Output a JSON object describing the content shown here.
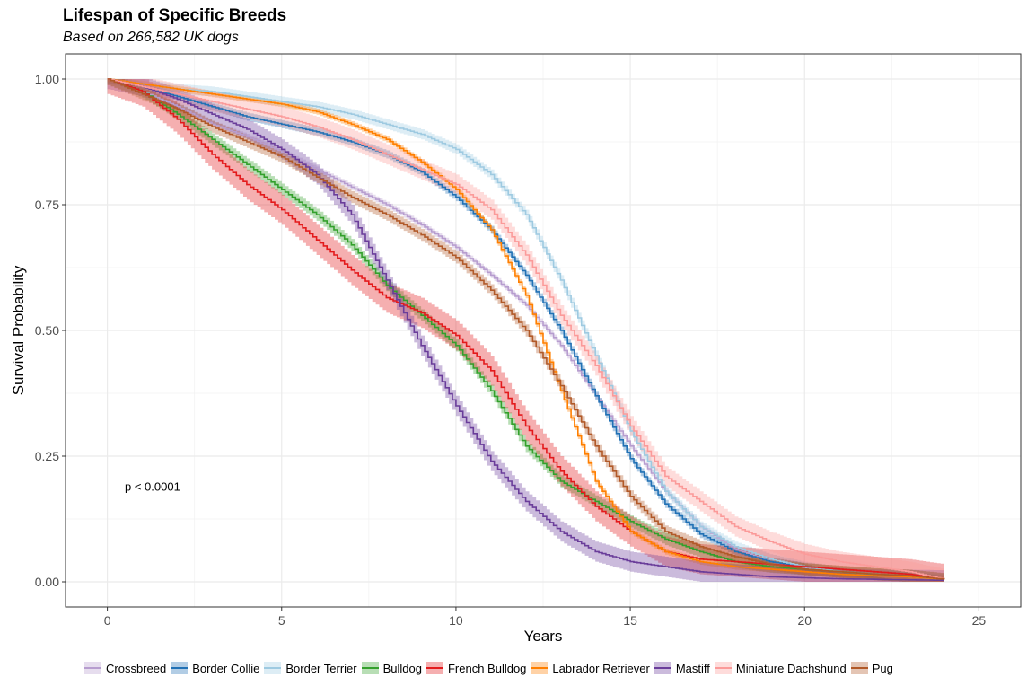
{
  "chart_data": {
    "type": "line",
    "title": "Lifespan of Specific Breeds",
    "subtitle": "Based on 266,582 UK dogs",
    "xlabel": "Years",
    "ylabel": "Survival Probability",
    "xlim": [
      -1.2,
      26.2
    ],
    "ylim": [
      -0.05,
      1.05
    ],
    "xticks": [
      0,
      5,
      10,
      15,
      20,
      25
    ],
    "yticks": [
      0.0,
      0.25,
      0.5,
      0.75,
      1.0
    ],
    "xtick_labels": [
      "0",
      "5",
      "10",
      "15",
      "20",
      "25"
    ],
    "ytick_labels": [
      "0.00",
      "0.25",
      "0.50",
      "0.75",
      "1.00"
    ],
    "grid": true,
    "legend": "bottom",
    "annotation": "p < 0.0001",
    "annotation_position": {
      "x": 0.5,
      "y": 0.19
    },
    "series": [
      {
        "name": "Crossbreed",
        "color": "#b79dcf",
        "band": 0.006,
        "x": [
          0,
          1,
          2,
          3,
          4,
          5,
          6,
          7,
          8,
          9,
          10,
          11,
          12,
          13,
          14,
          15,
          16,
          17,
          18,
          19,
          20,
          21,
          22,
          23,
          24
        ],
        "y": [
          1.0,
          0.975,
          0.945,
          0.91,
          0.885,
          0.855,
          0.82,
          0.785,
          0.75,
          0.71,
          0.665,
          0.61,
          0.55,
          0.47,
          0.37,
          0.27,
          0.18,
          0.11,
          0.065,
          0.04,
          0.028,
          0.02,
          0.015,
          0.012,
          0.005
        ]
      },
      {
        "name": "Border Collie",
        "color": "#2171b5",
        "band": 0.008,
        "x": [
          0,
          1,
          2,
          3,
          4,
          5,
          6,
          7,
          8,
          9,
          10,
          11,
          12,
          13,
          14,
          15,
          16,
          17,
          18,
          19,
          20,
          21,
          22,
          23,
          24
        ],
        "y": [
          1.0,
          0.985,
          0.965,
          0.945,
          0.925,
          0.91,
          0.895,
          0.875,
          0.85,
          0.815,
          0.765,
          0.7,
          0.61,
          0.5,
          0.37,
          0.245,
          0.155,
          0.095,
          0.06,
          0.04,
          0.03,
          0.02,
          0.015,
          0.01,
          0.005
        ]
      },
      {
        "name": "Border Terrier",
        "color": "#9ecae1",
        "band": 0.01,
        "x": [
          0,
          1,
          2,
          3,
          4,
          5,
          6,
          7,
          8,
          9,
          10,
          11,
          12,
          13,
          14,
          15,
          16,
          17,
          18,
          19,
          20,
          21,
          22,
          23,
          24
        ],
        "y": [
          1.0,
          0.99,
          0.98,
          0.975,
          0.965,
          0.955,
          0.945,
          0.93,
          0.91,
          0.89,
          0.86,
          0.81,
          0.73,
          0.6,
          0.45,
          0.3,
          0.18,
          0.11,
          0.07,
          0.045,
          0.03,
          0.02,
          0.015,
          0.01,
          0.005
        ]
      },
      {
        "name": "Bulldog",
        "color": "#33a02c",
        "band": 0.012,
        "x": [
          0,
          1,
          2,
          3,
          4,
          5,
          6,
          7,
          8,
          9,
          10,
          11,
          12,
          13,
          14,
          15,
          16,
          17,
          18,
          19,
          20,
          21,
          22,
          23,
          24
        ],
        "y": [
          1.0,
          0.975,
          0.93,
          0.88,
          0.83,
          0.78,
          0.73,
          0.67,
          0.59,
          0.53,
          0.47,
          0.38,
          0.27,
          0.2,
          0.16,
          0.12,
          0.085,
          0.06,
          0.04,
          0.03,
          0.025,
          0.02,
          0.015,
          0.012,
          0.005
        ]
      },
      {
        "name": "French Bulldog",
        "color": "#e31a1c",
        "band": 0.03,
        "x": [
          0,
          1,
          2,
          3,
          4,
          5,
          6,
          7,
          8,
          9,
          10,
          11,
          12,
          13,
          14,
          15,
          16,
          17,
          18,
          19,
          20,
          21,
          22,
          23,
          24
        ],
        "y": [
          1.0,
          0.975,
          0.92,
          0.85,
          0.79,
          0.74,
          0.68,
          0.62,
          0.565,
          0.535,
          0.49,
          0.42,
          0.31,
          0.22,
          0.15,
          0.1,
          0.06,
          0.045,
          0.04,
          0.035,
          0.03,
          0.025,
          0.02,
          0.015,
          0.005
        ]
      },
      {
        "name": "Labrador Retriever",
        "color": "#ff7f00",
        "band": 0.006,
        "x": [
          0,
          1,
          2,
          3,
          4,
          5,
          6,
          7,
          8,
          9,
          10,
          11,
          12,
          13,
          14,
          15,
          16,
          17,
          18,
          19,
          20,
          21,
          22,
          23,
          24
        ],
        "y": [
          1.0,
          0.99,
          0.98,
          0.97,
          0.96,
          0.95,
          0.935,
          0.91,
          0.88,
          0.835,
          0.78,
          0.7,
          0.57,
          0.38,
          0.2,
          0.1,
          0.06,
          0.04,
          0.03,
          0.025,
          0.02,
          0.015,
          0.012,
          0.01,
          0.005
        ]
      },
      {
        "name": "Mastiff",
        "color": "#6a3d9a",
        "band": 0.02,
        "x": [
          0,
          1,
          2,
          3,
          4,
          5,
          6,
          7,
          8,
          9,
          10,
          11,
          12,
          13,
          14,
          15,
          16,
          17,
          18,
          19,
          20,
          21,
          22,
          23,
          24
        ],
        "y": [
          1.0,
          0.985,
          0.96,
          0.93,
          0.9,
          0.86,
          0.81,
          0.73,
          0.6,
          0.47,
          0.35,
          0.24,
          0.16,
          0.1,
          0.06,
          0.04,
          0.03,
          0.02,
          0.015,
          0.01,
          0.008,
          0.006,
          0.005,
          0.004,
          0.003
        ]
      },
      {
        "name": "Miniature Dachshund",
        "color": "#fb9a99",
        "band": 0.02,
        "x": [
          0,
          1,
          2,
          3,
          4,
          5,
          6,
          7,
          8,
          9,
          10,
          11,
          12,
          13,
          14,
          15,
          16,
          17,
          18,
          19,
          20,
          21,
          22,
          23,
          24
        ],
        "y": [
          1.0,
          0.985,
          0.97,
          0.955,
          0.94,
          0.925,
          0.905,
          0.88,
          0.85,
          0.82,
          0.79,
          0.74,
          0.65,
          0.53,
          0.43,
          0.31,
          0.21,
          0.16,
          0.11,
          0.08,
          0.055,
          0.04,
          0.03,
          0.02,
          0.005
        ]
      },
      {
        "name": "Pug",
        "color": "#b15928",
        "band": 0.012,
        "x": [
          0,
          1,
          2,
          3,
          4,
          5,
          6,
          7,
          8,
          9,
          10,
          11,
          12,
          13,
          14,
          15,
          16,
          17,
          18,
          19,
          20,
          21,
          22,
          23,
          24
        ],
        "y": [
          1.0,
          0.97,
          0.94,
          0.905,
          0.875,
          0.845,
          0.805,
          0.765,
          0.73,
          0.69,
          0.645,
          0.58,
          0.5,
          0.39,
          0.27,
          0.17,
          0.1,
          0.07,
          0.05,
          0.035,
          0.025,
          0.02,
          0.015,
          0.012,
          0.005
        ]
      }
    ]
  }
}
